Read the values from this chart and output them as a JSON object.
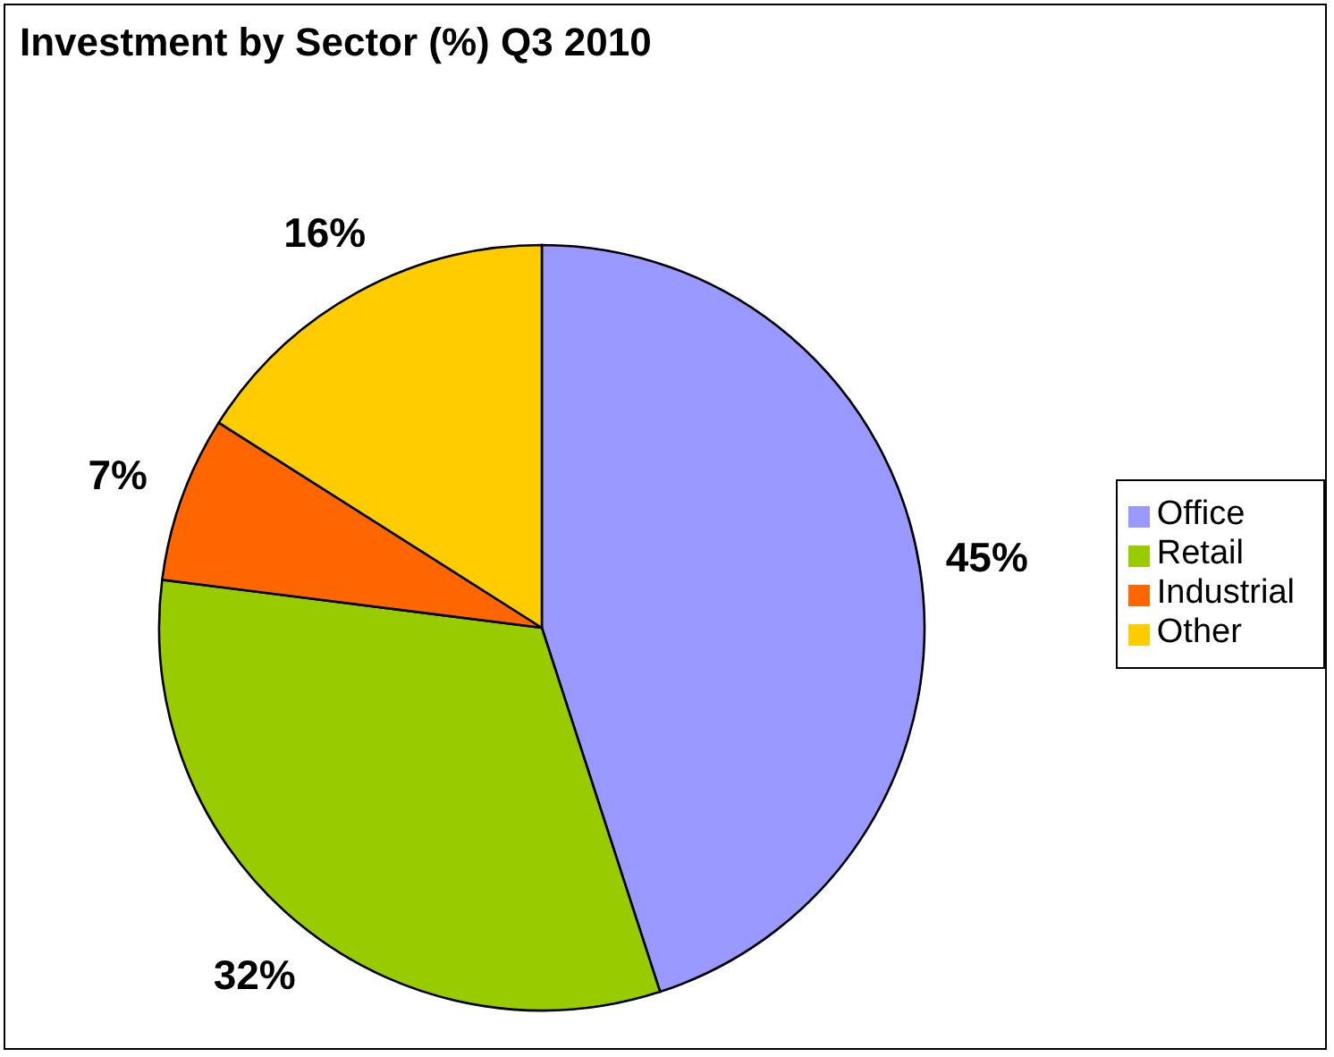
{
  "chart_data": {
    "type": "pie",
    "title": "Investment by Sector (%) Q3 2010",
    "categories": [
      "Office",
      "Retail",
      "Industrial",
      "Other"
    ],
    "values": [
      45,
      32,
      7,
      16
    ],
    "colors": [
      "#9999ff",
      "#99cc00",
      "#ff6600",
      "#ffcc00"
    ],
    "value_labels": [
      "45%",
      "32%",
      "7%",
      "16%"
    ],
    "legend": "right"
  }
}
